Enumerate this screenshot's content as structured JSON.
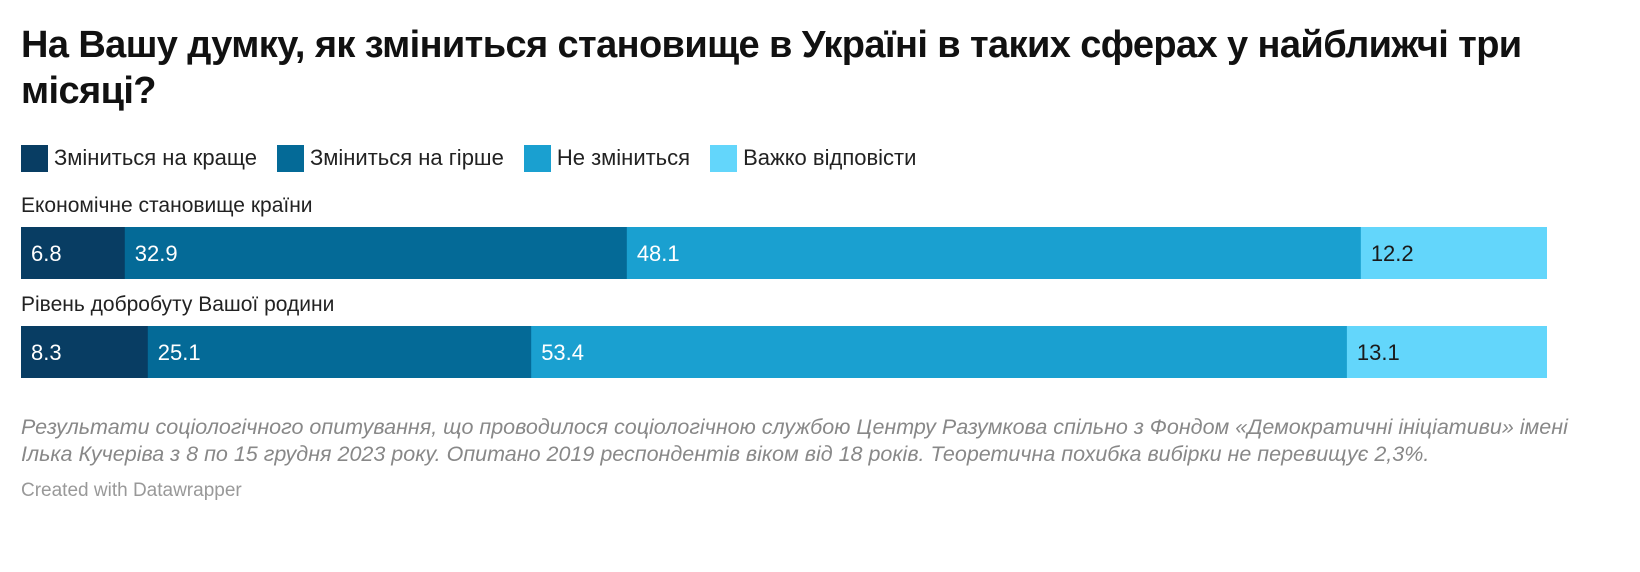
{
  "title": "На Вашу думку, як зміниться становище в Україні в таких сферах у найближчі три місяці?",
  "colors": [
    "#083d63",
    "#046a97",
    "#1aa0d0",
    "#63d6fb"
  ],
  "chart_data": {
    "type": "bar",
    "orientation": "horizontal",
    "stacked": true,
    "legend_position": "top",
    "categories": [
      "Економічне становище країни",
      "Рівень добробуту Вашої родини"
    ],
    "series": [
      {
        "name": "Зміниться на краще",
        "values": [
          6.8,
          8.3
        ],
        "labels": [
          "6.8",
          "8.3"
        ]
      },
      {
        "name": "Зміниться на гірше",
        "values": [
          32.9,
          25.1
        ],
        "labels": [
          "32.9",
          "25.1"
        ]
      },
      {
        "name": "Не зміниться",
        "values": [
          48.1,
          53.4
        ],
        "labels": [
          "48.1",
          "53.4"
        ]
      },
      {
        "name": "Важко відповісти",
        "values": [
          12.2,
          13.1
        ],
        "labels": [
          "12.2",
          "13.1"
        ]
      }
    ]
  },
  "notes": "Результати соціологічного опитування, що проводилося соціологічною службою Центру Разумкова спільно з Фондом «Демократичні ініціативи» імені Ілька Кучеріва з 8  по 15 грудня 2023 року. Опитано 2019 респондентів віком від 18 років. Теоретична похибка вибірки не перевищує 2,3%.",
  "credit": "Created with Datawrapper"
}
